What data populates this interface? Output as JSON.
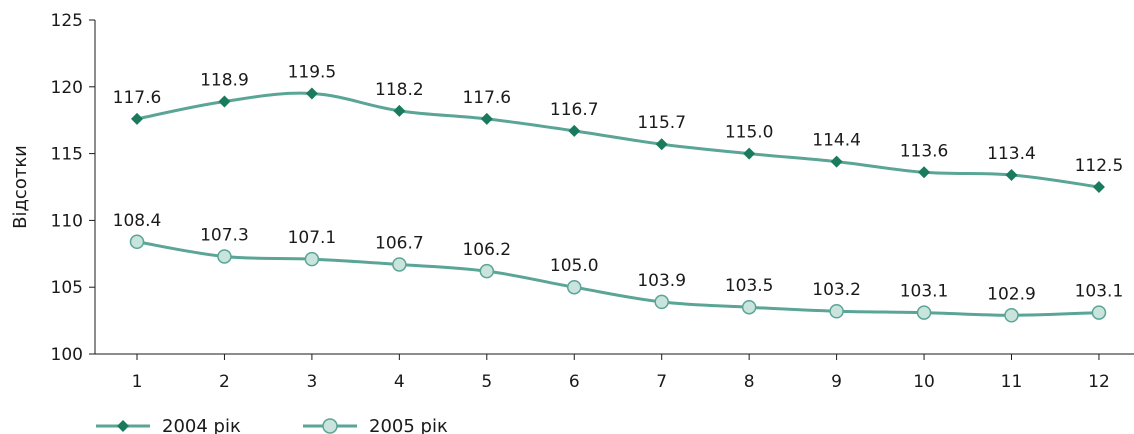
{
  "chart_data": {
    "type": "line",
    "title": "",
    "xlabel": "",
    "ylabel": "Відсотки",
    "categories": [
      "1",
      "2",
      "3",
      "4",
      "5",
      "6",
      "7",
      "8",
      "9",
      "10",
      "11",
      "12"
    ],
    "ylim": [
      100,
      125
    ],
    "yticks": [
      "100",
      "105",
      "110",
      "115",
      "120",
      "125"
    ],
    "grid": false,
    "legend_position": "bottom-left",
    "series": [
      {
        "name": "2004 рік",
        "marker": "diamond",
        "color": "#5aa596",
        "marker_fill": "#1a7a5c",
        "values": [
          117.6,
          118.9,
          119.5,
          118.2,
          117.6,
          116.7,
          115.7,
          115.0,
          114.4,
          113.6,
          113.4,
          112.5
        ],
        "labels": [
          "117.6",
          "118.9",
          "119.5",
          "118.2",
          "117.6",
          "116.7",
          "115.7",
          "115.0",
          "114.4",
          "113.6",
          "113.4",
          "112.5"
        ]
      },
      {
        "name": "2005 рік",
        "marker": "circle",
        "color": "#5aa596",
        "marker_fill": "#c9e4dc",
        "values": [
          108.4,
          107.3,
          107.1,
          106.7,
          106.2,
          105.0,
          103.9,
          103.5,
          103.2,
          103.1,
          102.9,
          103.1
        ],
        "labels": [
          "108.4",
          "107.3",
          "107.1",
          "106.7",
          "106.2",
          "105.0",
          "103.9",
          "103.5",
          "103.2",
          "103.1",
          "102.9",
          "103.1"
        ]
      }
    ]
  }
}
